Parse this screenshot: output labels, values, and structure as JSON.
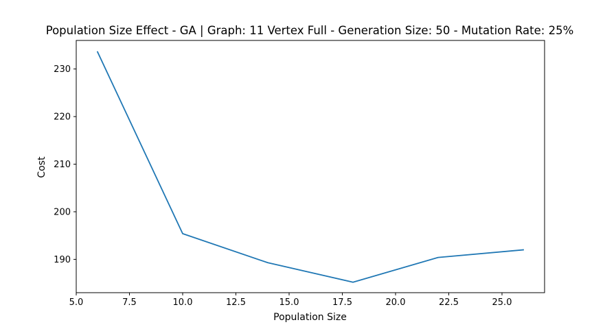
{
  "chart_data": {
    "type": "line",
    "title": "Population Size Effect - GA | Graph: 11 Vertex Full - Generation Size: 50 - Mutation Rate: 25%",
    "xlabel": "Population Size",
    "ylabel": "Cost",
    "xlim": [
      5.0,
      27.0
    ],
    "ylim": [
      183.0,
      236.0
    ],
    "x_ticks": [
      "5.0",
      "7.5",
      "10.0",
      "12.5",
      "15.0",
      "17.5",
      "20.0",
      "22.5",
      "25.0"
    ],
    "y_ticks": [
      "190",
      "200",
      "210",
      "220",
      "230"
    ],
    "grid": false,
    "series": [
      {
        "color": "#1f77b4",
        "x": [
          6,
          10,
          14,
          18,
          22,
          26
        ],
        "y": [
          233.6,
          195.4,
          189.3,
          185.2,
          190.4,
          192.0
        ]
      }
    ]
  }
}
